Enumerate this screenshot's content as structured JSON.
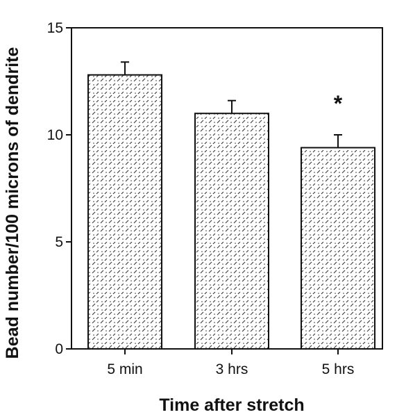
{
  "chart_data": {
    "type": "bar",
    "title": "",
    "xlabel": "Time after stretch",
    "ylabel": "Bead number/100 microns of dendrite",
    "categories": [
      "5 min",
      "3 hrs",
      "5 hrs"
    ],
    "values": [
      12.8,
      11.0,
      9.4
    ],
    "error": [
      0.6,
      0.6,
      0.6
    ],
    "ylim": [
      0,
      15
    ],
    "yticks": [
      0,
      5,
      10,
      15
    ],
    "annotations": [
      {
        "category": "5 hrs",
        "text": "*"
      }
    ],
    "grid": false,
    "bar_fill": "hatched",
    "bar_color": "#000000"
  }
}
